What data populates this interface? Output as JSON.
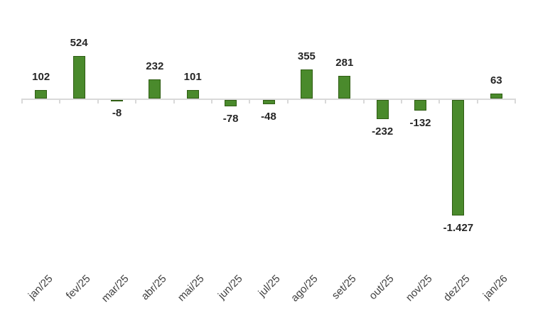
{
  "chart": {
    "bar_fill_color": "#4a8a2c",
    "bar_border_color": "#2f5d13",
    "axis_color": "#d9d9d9",
    "value_label_color": "#262626",
    "axis_label_color": "#404040",
    "background_color": "#ffffff"
  },
  "chart_data": {
    "type": "bar",
    "title": "",
    "xlabel": "",
    "ylabel": "",
    "categories": [
      "jan/25",
      "fev/25",
      "mar/25",
      "abr/25",
      "mai/25",
      "jun/25",
      "jul/25",
      "ago/25",
      "set/25",
      "out/25",
      "nov/25",
      "dez/25",
      "jan/26"
    ],
    "values": [
      102,
      524,
      -8,
      232,
      101,
      -78,
      -48,
      355,
      281,
      -232,
      -132,
      -1427,
      63
    ],
    "value_labels": [
      "102",
      "524",
      "-8",
      "232",
      "101",
      "-78",
      "-48",
      "355",
      "281",
      "-232",
      "-132",
      "-1.427",
      "63"
    ],
    "ylim": [
      -1500,
      600
    ],
    "grid": false,
    "legend": false,
    "y_axis_visible": false,
    "data_label_position": "outside-end"
  }
}
